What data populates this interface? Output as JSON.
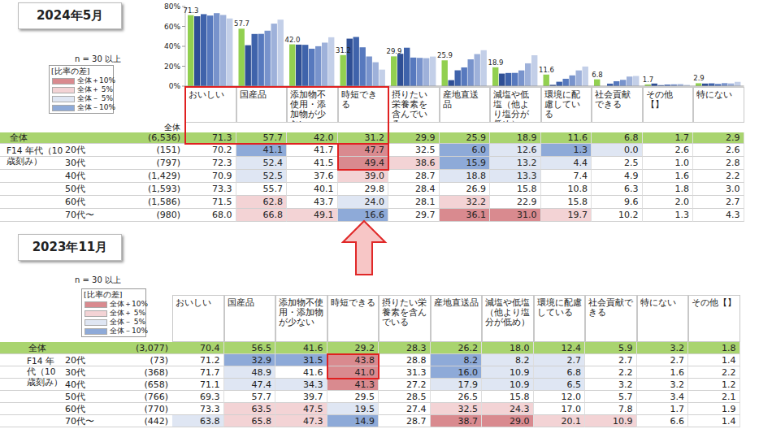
{
  "chart_data": {
    "type": "bar",
    "title": "2024年5月",
    "subtitle": "n = 30 以上",
    "categories": [
      "おいしい",
      "国産品",
      "添加物不使用・添加物が少ない",
      "時短できる",
      "摂りたい栄養素を含んでいる",
      "産地直送品",
      "減塩や低塩（他より塩分が低め）",
      "環境に配慮している",
      "社会貢献できる",
      "その他【】",
      "特にない"
    ],
    "series": [
      {
        "name": "全体",
        "n_label": "(6,536)",
        "color": "#92d050",
        "values": [
          71.3,
          57.7,
          42.0,
          31.2,
          29.9,
          25.9,
          18.9,
          11.6,
          6.8,
          1.7,
          2.9
        ]
      },
      {
        "name": "20代",
        "n_label": "(151)",
        "color": "#2f4f95",
        "values": [
          70.2,
          41.1,
          41.7,
          47.7,
          32.5,
          6.0,
          12.6,
          1.3,
          0.0,
          2.6,
          2.6
        ]
      },
      {
        "name": "30代",
        "n_label": "(797)",
        "color": "#3f63ab",
        "values": [
          72.3,
          52.4,
          41.5,
          49.4,
          38.6,
          15.9,
          13.2,
          4.4,
          2.5,
          1.0,
          2.8
        ]
      },
      {
        "name": "40代",
        "n_label": "(1,429)",
        "color": "#5779be",
        "values": [
          70.9,
          52.5,
          37.6,
          39.0,
          28.7,
          18.8,
          13.3,
          7.4,
          4.9,
          1.6,
          2.2
        ]
      },
      {
        "name": "50代",
        "n_label": "(1,593)",
        "color": "#7893cc",
        "values": [
          73.3,
          55.7,
          40.1,
          29.8,
          28.4,
          26.9,
          15.8,
          10.8,
          6.3,
          1.8,
          3.0
        ]
      },
      {
        "name": "60代",
        "n_label": "(1,586)",
        "color": "#9eb1da",
        "values": [
          71.5,
          62.8,
          43.7,
          24.0,
          28.1,
          32.2,
          22.9,
          15.8,
          9.6,
          2.0,
          2.7
        ]
      },
      {
        "name": "70代〜",
        "n_label": "(980)",
        "color": "#c3cfe8",
        "values": [
          68.0,
          66.8,
          49.1,
          16.6,
          29.7,
          36.1,
          31.0,
          19.7,
          10.2,
          1.3,
          4.3
        ]
      }
    ],
    "ylim": [
      0,
      80
    ],
    "yticks": [
      {
        "value": 0,
        "label": "0%"
      },
      {
        "value": 20,
        "label": "20%"
      },
      {
        "value": 40,
        "label": "40%"
      },
      {
        "value": 60,
        "label": "60%"
      },
      {
        "value": 80,
        "label": "80%"
      }
    ],
    "grid": false,
    "data_labels": true
  },
  "table_2024": {
    "n_header": "全体",
    "group_label": "F14 年代（10歳刻み）",
    "legend": {
      "title": "[比率の差]",
      "entries": [
        {
          "label": "全体＋10%",
          "diff": 10,
          "color": "#d98a8f"
        },
        {
          "label": "全体＋ 5%",
          "diff": 5,
          "color": "#f3d3d5"
        },
        {
          "label": "全体－ 5%",
          "diff": -5,
          "color": "#dfe6f3"
        },
        {
          "label": "全体－10%",
          "diff": -10,
          "color": "#8eaad8"
        }
      ]
    }
  },
  "survey_2023": {
    "title": "2023年11月",
    "subtitle": "n = 30 以上",
    "group_label": "F14 年代（10歳刻み）",
    "legend": {
      "title": "[比率の差]",
      "entries": [
        {
          "label": "全体＋10%",
          "diff": 10,
          "color": "#d98a8f"
        },
        {
          "label": "全体＋ 5%",
          "diff": 5,
          "color": "#f3d3d5"
        },
        {
          "label": "全体－ 5%",
          "diff": -5,
          "color": "#dfe6f3"
        },
        {
          "label": "全体－10%",
          "diff": -10,
          "color": "#8eaad8"
        }
      ]
    },
    "columns": [
      "おいしい",
      "国産品",
      "添加物不使用・添加物が少ない",
      "時短できる",
      "摂りたい栄養素を含んでいる",
      "産地直送品",
      "減塩や低塩（他より塩分が低め）",
      "環境に配慮している",
      "社会貢献できる",
      "特にない",
      "その他【】"
    ],
    "rows": [
      {
        "label": "全体",
        "n_label": "(3,077)",
        "values": [
          70.4,
          56.5,
          41.6,
          29.2,
          28.3,
          26.2,
          18.0,
          12.4,
          5.9,
          3.2,
          1.8
        ]
      },
      {
        "label": "20代",
        "n_label": "(73)",
        "values": [
          71.2,
          32.9,
          31.5,
          43.8,
          28.8,
          8.2,
          8.2,
          2.7,
          2.7,
          2.7,
          1.4
        ]
      },
      {
        "label": "30代",
        "n_label": "(368)",
        "values": [
          71.7,
          48.9,
          41.6,
          41.0,
          31.3,
          16.0,
          10.9,
          6.8,
          2.2,
          1.6,
          2.2
        ]
      },
      {
        "label": "40代",
        "n_label": "(658)",
        "values": [
          71.1,
          47.4,
          34.3,
          41.3,
          27.2,
          17.9,
          10.9,
          6.5,
          3.2,
          3.2,
          1.2
        ]
      },
      {
        "label": "50代",
        "n_label": "(766)",
        "values": [
          69.3,
          57.7,
          39.7,
          29.5,
          28.5,
          26.5,
          15.8,
          12.0,
          5.7,
          3.4,
          2.1
        ]
      },
      {
        "label": "60代",
        "n_label": "(770)",
        "values": [
          73.3,
          63.5,
          47.5,
          19.5,
          27.4,
          32.5,
          24.3,
          17.0,
          7.8,
          1.7,
          1.9
        ]
      },
      {
        "label": "70代〜",
        "n_label": "(442)",
        "values": [
          63.8,
          65.8,
          47.3,
          14.9,
          28.7,
          38.7,
          29.0,
          20.1,
          10.9,
          6.6,
          1.4
        ]
      }
    ]
  }
}
